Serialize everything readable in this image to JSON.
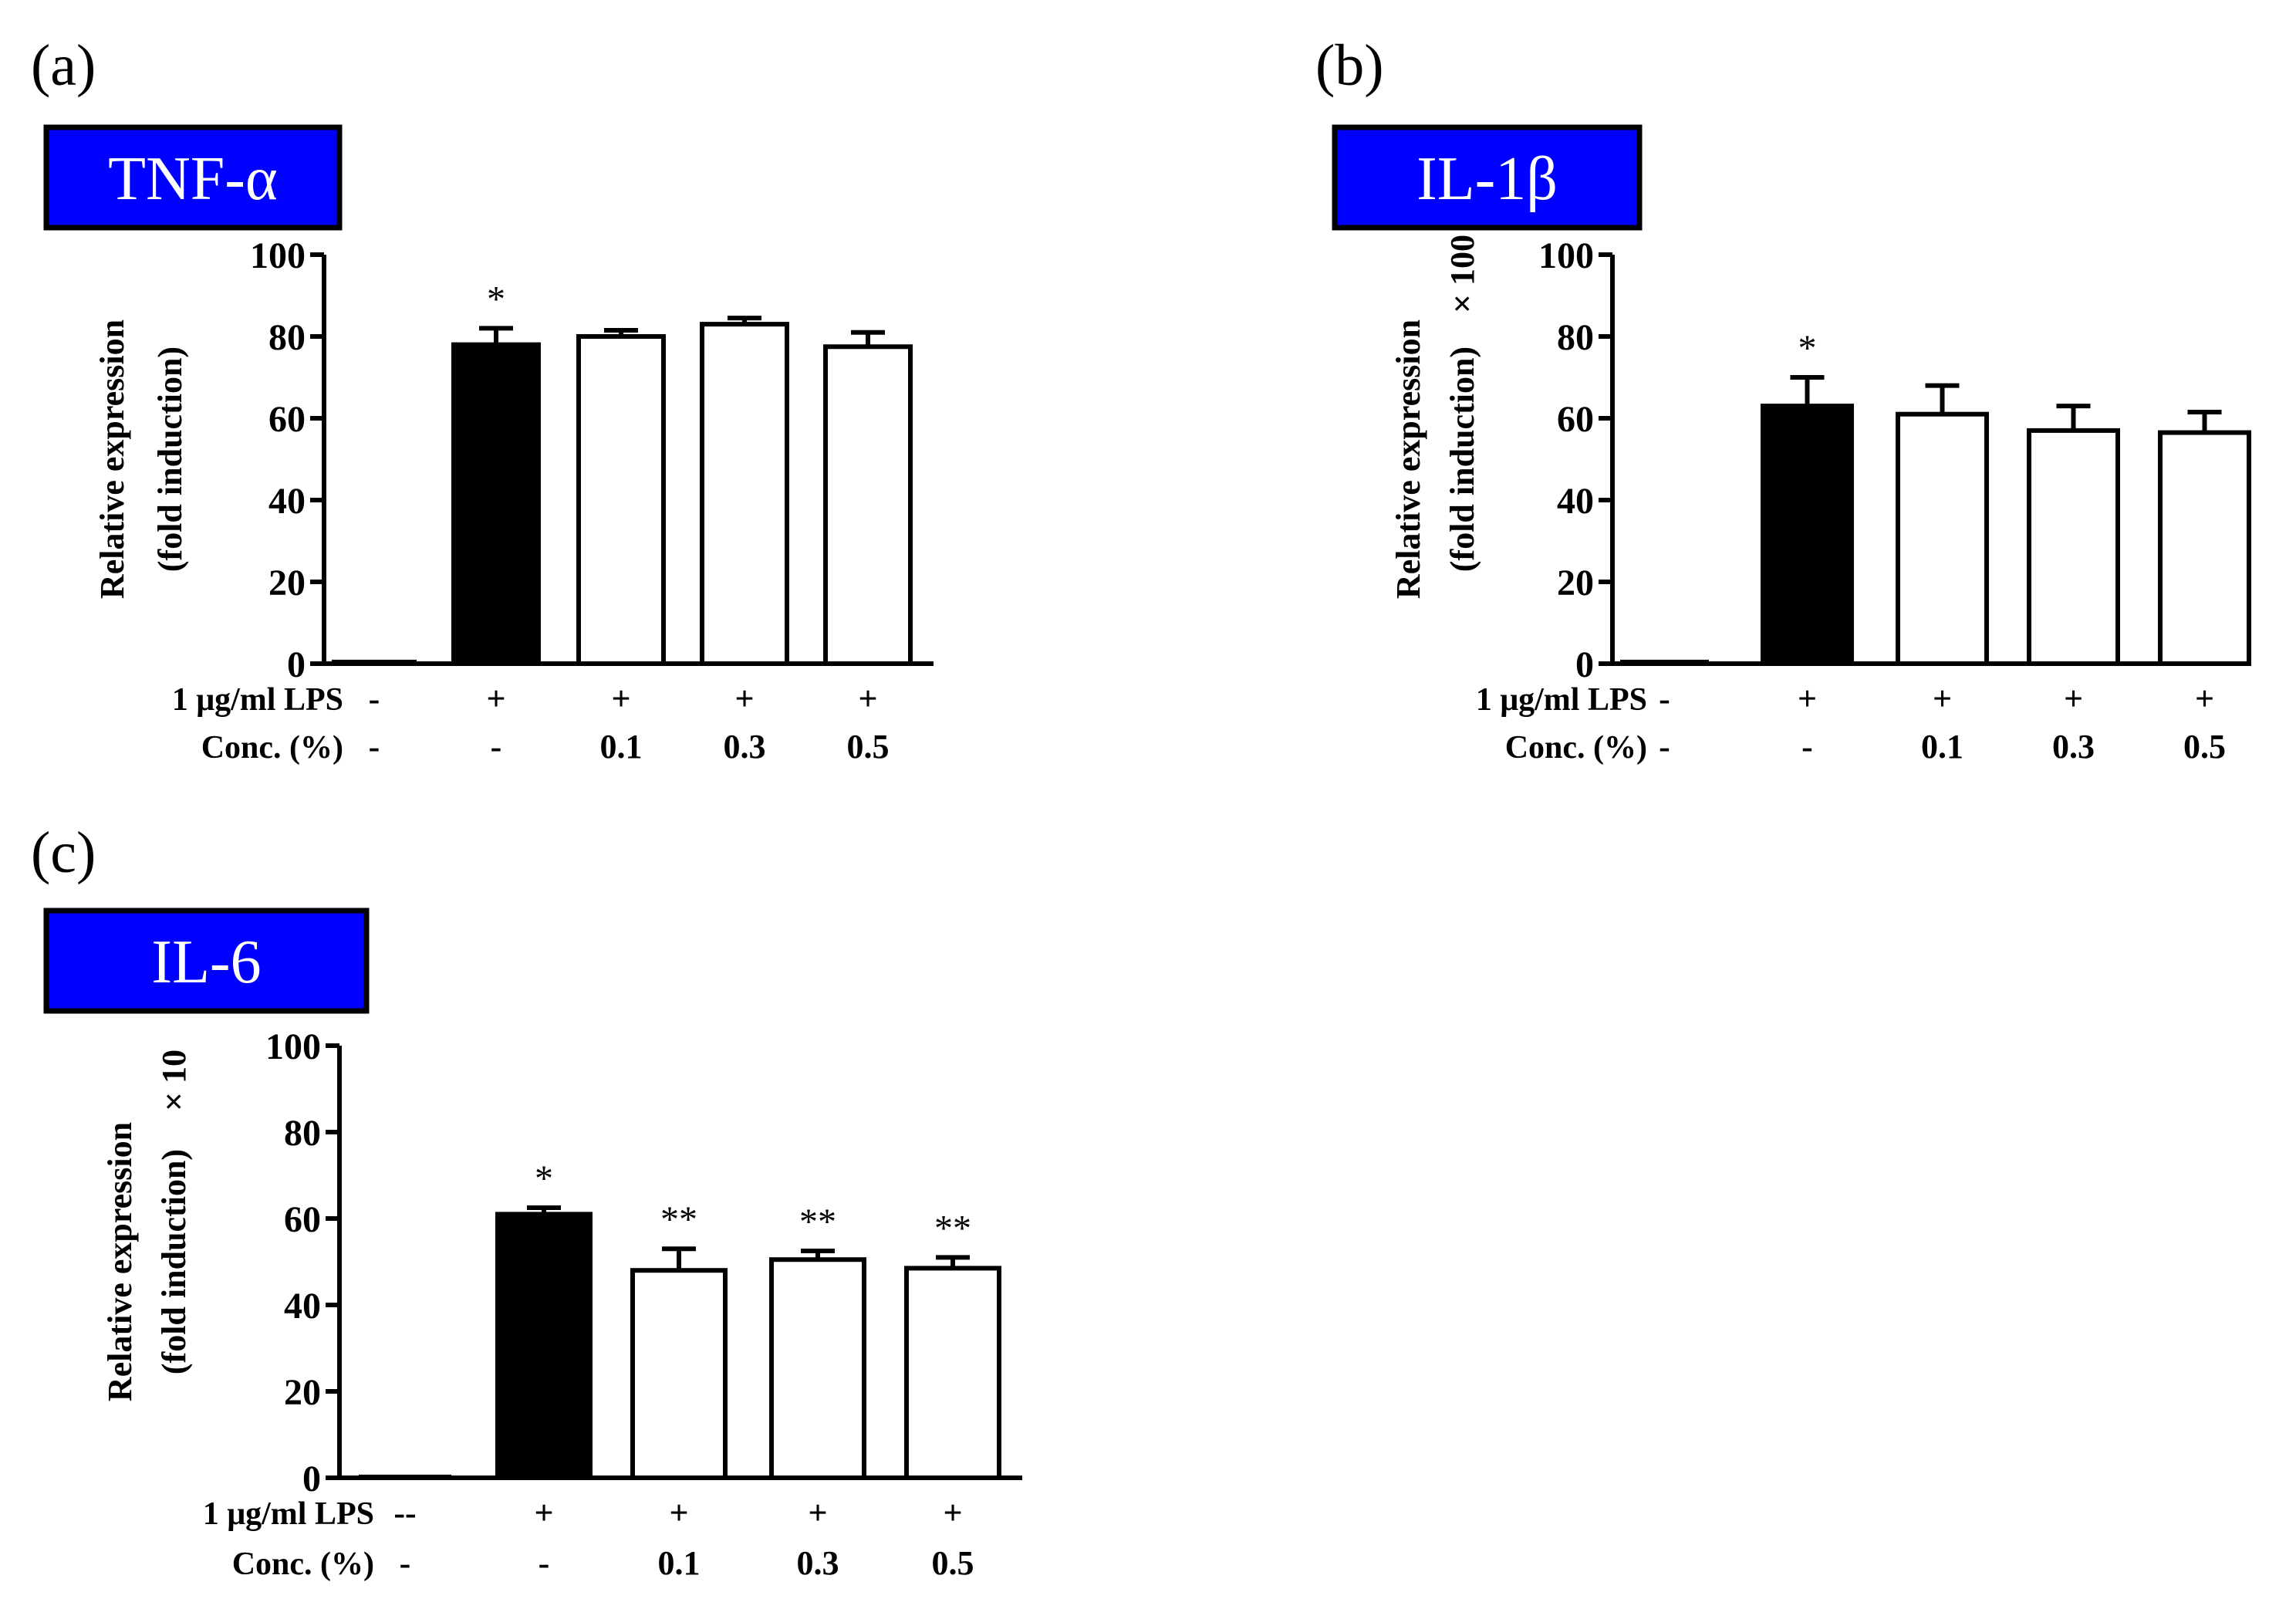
{
  "chart_data": [
    {
      "type": "bar",
      "panel": "(a)",
      "title": "TNF-α",
      "ylabel": [
        "Relative expression",
        "(fold induction)"
      ],
      "ylabel_suffix": "",
      "ylim": [
        0,
        100
      ],
      "yticks": [
        0,
        20,
        40,
        60,
        80,
        100
      ],
      "row_labels": [
        "1 μg/ml LPS",
        "Conc. (%)"
      ],
      "lps": [
        "-",
        "+",
        "+",
        "+",
        "+"
      ],
      "conc": [
        "-",
        "-",
        "0.1",
        "0.3",
        "0.5"
      ],
      "values": [
        0.5,
        78,
        80,
        83,
        77.5
      ],
      "errors": [
        0,
        4,
        1.5,
        1.5,
        3.5
      ],
      "fills": [
        "#ffffff",
        "#000000",
        "#ffffff",
        "#ffffff",
        "#ffffff"
      ],
      "significance": [
        "",
        "*",
        "",
        "",
        ""
      ]
    },
    {
      "type": "bar",
      "panel": "(b)",
      "title": "IL-1β",
      "ylabel": [
        "Relative expression",
        "(fold induction)"
      ],
      "ylabel_suffix": "× 100",
      "ylim": [
        0,
        100
      ],
      "yticks": [
        0,
        20,
        40,
        60,
        80,
        100
      ],
      "row_labels": [
        "1 μg/ml LPS",
        "Conc. (%)"
      ],
      "lps": [
        "-",
        "+",
        "+",
        "+",
        "+"
      ],
      "conc": [
        "-",
        "-",
        "0.1",
        "0.3",
        "0.5"
      ],
      "values": [
        0.5,
        63,
        61,
        57,
        56.5
      ],
      "errors": [
        0,
        7,
        7,
        6,
        5
      ],
      "fills": [
        "#ffffff",
        "#000000",
        "#ffffff",
        "#ffffff",
        "#ffffff"
      ],
      "significance": [
        "",
        "*",
        "",
        "",
        ""
      ]
    },
    {
      "type": "bar",
      "panel": "(c)",
      "title": "IL-6",
      "ylabel": [
        "Relative expression",
        "(fold induction)"
      ],
      "ylabel_suffix": "× 10",
      "ylim": [
        0,
        100
      ],
      "yticks": [
        0,
        20,
        40,
        60,
        80,
        100
      ],
      "row_labels": [
        "1 μg/ml LPS",
        "Conc. (%)"
      ],
      "lps": [
        "--",
        "+",
        "+",
        "+",
        "+"
      ],
      "conc": [
        "-",
        "-",
        "0.1",
        "0.3",
        "0.5"
      ],
      "values": [
        0.3,
        61,
        48,
        50.5,
        48.5
      ],
      "errors": [
        0,
        1.5,
        5,
        2,
        2.5
      ],
      "fills": [
        "#ffffff",
        "#000000",
        "#ffffff",
        "#ffffff",
        "#ffffff"
      ],
      "significance": [
        "",
        "*",
        "**",
        "**",
        "**"
      ]
    }
  ],
  "colors": {
    "title_box": "#0000ff",
    "axis": "#000000",
    "treated_bar": "#000000",
    "sample_bar": "#ffffff"
  }
}
